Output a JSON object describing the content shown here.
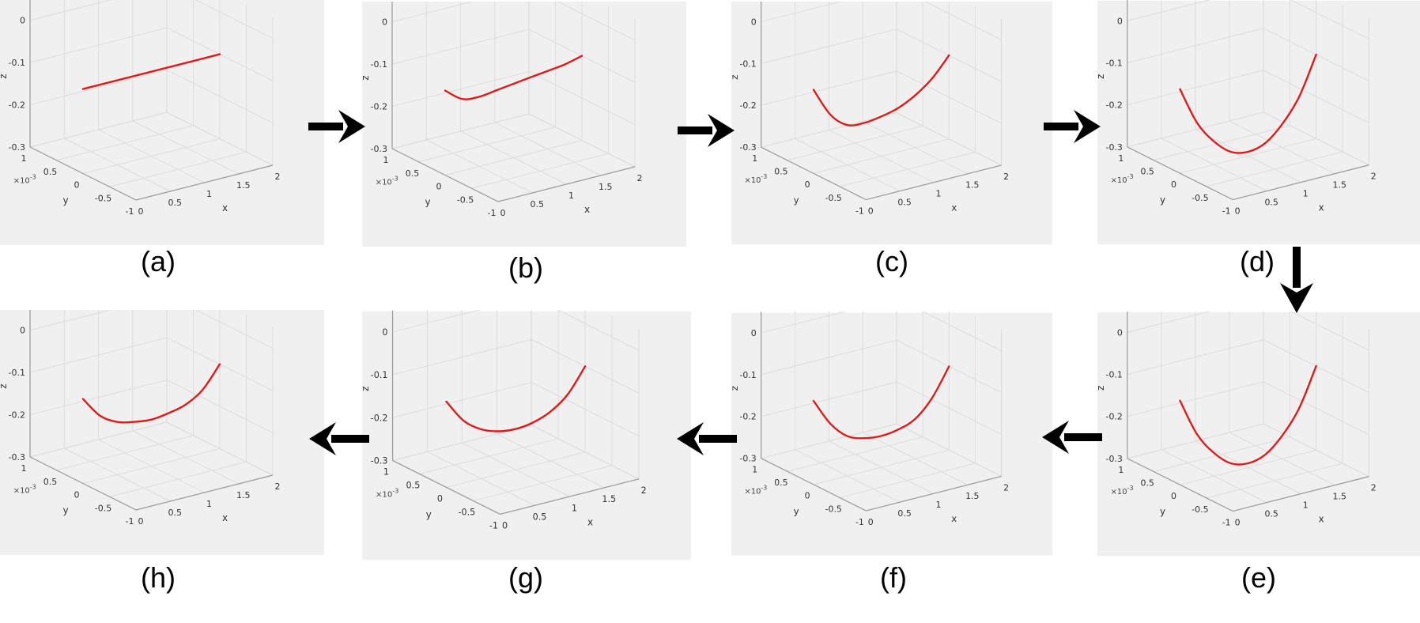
{
  "figure": {
    "flow": [
      "a",
      "b",
      "c",
      "d",
      "e",
      "f",
      "g",
      "h"
    ],
    "colors": {
      "curve": "#dd1c1a",
      "panel_bg": "#f0f0f0",
      "grid": "#dcdcdc",
      "axis": "#9a9a9a",
      "arrow": "#000000"
    }
  },
  "chart_data": [
    {
      "id": "a",
      "type": "line",
      "caption": "(a)",
      "xlabel": "x",
      "ylabel": "y",
      "zlabel": "z",
      "x_ticks": [
        "0",
        "0.5",
        "1",
        "1.5",
        "2"
      ],
      "y_ticks": [
        "1",
        "0.5",
        "0",
        "-0.5",
        "-1"
      ],
      "y_exponent": "×10-3",
      "z_ticks": [
        "0",
        "-0.1",
        "-0.2",
        "-0.3"
      ],
      "xlim": [
        0,
        2
      ],
      "ylim": [
        -0.001,
        0.001
      ],
      "zlim": [
        -0.3,
        0.05
      ],
      "grid": true,
      "series": [
        {
          "x": [
            0,
            2
          ],
          "y": [
            0,
            0
          ],
          "z": [
            -0.1,
            -0.1
          ]
        }
      ]
    },
    {
      "id": "b",
      "type": "line",
      "caption": "(b)",
      "xlabel": "x",
      "ylabel": "y",
      "zlabel": "z",
      "x_ticks": [
        "0",
        "0.5",
        "1",
        "1.5",
        "2"
      ],
      "y_ticks": [
        "1",
        "0.5",
        "0",
        "-0.5",
        "-1"
      ],
      "y_exponent": "×10-3",
      "z_ticks": [
        "0",
        "-0.1",
        "-0.2",
        "-0.3"
      ],
      "xlim": [
        0,
        2
      ],
      "ylim": [
        -0.001,
        0.001
      ],
      "zlim": [
        -0.3,
        0.05
      ],
      "grid": true,
      "series": [
        {
          "x": [
            0,
            0.25,
            0.5,
            0.75,
            1,
            1.25,
            1.5,
            1.75,
            2
          ],
          "y": [
            0,
            0,
            0,
            0,
            0,
            0,
            0,
            0,
            0
          ],
          "z": [
            -0.1,
            -0.13,
            -0.135,
            -0.13,
            -0.125,
            -0.12,
            -0.115,
            -0.11,
            -0.1
          ]
        }
      ]
    },
    {
      "id": "c",
      "type": "line",
      "caption": "(c)",
      "xlabel": "x",
      "ylabel": "y",
      "zlabel": "z",
      "x_ticks": [
        "0",
        "0.5",
        "1",
        "1.5",
        "2"
      ],
      "y_ticks": [
        "1",
        "0.5",
        "0",
        "-0.5",
        "-1"
      ],
      "y_exponent": "×10-3",
      "z_ticks": [
        "0",
        "-0.1",
        "-0.2",
        "-0.3"
      ],
      "xlim": [
        0,
        2
      ],
      "ylim": [
        -0.001,
        0.001
      ],
      "zlim": [
        -0.3,
        0.05
      ],
      "grid": true,
      "series": [
        {
          "x": [
            0,
            0.25,
            0.5,
            0.75,
            1,
            1.25,
            1.5,
            1.75,
            2
          ],
          "y": [
            0,
            0,
            0,
            0,
            0,
            0,
            0,
            0,
            0
          ],
          "z": [
            -0.1,
            -0.17,
            -0.205,
            -0.21,
            -0.205,
            -0.195,
            -0.175,
            -0.145,
            -0.1
          ]
        }
      ]
    },
    {
      "id": "d",
      "type": "line",
      "caption": "(d)",
      "xlabel": "x",
      "ylabel": "y",
      "zlabel": "z",
      "x_ticks": [
        "0",
        "0.5",
        "1",
        "1.5",
        "2"
      ],
      "y_ticks": [
        "1",
        "0.5",
        "0",
        "-0.5",
        "-1"
      ],
      "y_exponent": "×10-3",
      "z_ticks": [
        "0",
        "-0.1",
        "-0.2",
        "-0.3"
      ],
      "xlim": [
        0,
        2
      ],
      "ylim": [
        -0.001,
        0.001
      ],
      "zlim": [
        -0.3,
        0.05
      ],
      "grid": true,
      "series": [
        {
          "x": [
            0,
            0.25,
            0.5,
            0.75,
            1,
            1.25,
            1.5,
            1.75,
            2
          ],
          "y": [
            0,
            0,
            0,
            0,
            0,
            0,
            0,
            0,
            0
          ],
          "z": [
            -0.1,
            -0.19,
            -0.245,
            -0.28,
            -0.29,
            -0.28,
            -0.245,
            -0.19,
            -0.1
          ]
        }
      ]
    },
    {
      "id": "e",
      "type": "line",
      "caption": "(e)",
      "xlabel": "x",
      "ylabel": "y",
      "zlabel": "z",
      "x_ticks": [
        "0",
        "0.5",
        "1",
        "1.5",
        "2"
      ],
      "y_ticks": [
        "1",
        "0.5",
        "0",
        "-0.5",
        "-1"
      ],
      "y_exponent": "×10-3",
      "z_ticks": [
        "0",
        "-0.1",
        "-0.2",
        "-0.3"
      ],
      "xlim": [
        0,
        2
      ],
      "ylim": [
        -0.001,
        0.001
      ],
      "zlim": [
        -0.3,
        0.05
      ],
      "grid": true,
      "series": [
        {
          "x": [
            0,
            0.25,
            0.5,
            0.75,
            1,
            1.25,
            1.5,
            1.75,
            2
          ],
          "y": [
            0,
            0,
            0,
            0,
            0,
            0,
            0,
            0,
            0
          ],
          "z": [
            -0.1,
            -0.19,
            -0.245,
            -0.28,
            -0.29,
            -0.28,
            -0.245,
            -0.19,
            -0.1
          ]
        }
      ]
    },
    {
      "id": "f",
      "type": "line",
      "caption": "(f)",
      "xlabel": "x",
      "ylabel": "y",
      "zlabel": "z",
      "x_ticks": [
        "0",
        "0.5",
        "1",
        "1.5",
        "2"
      ],
      "y_ticks": [
        "1",
        "0.5",
        "0",
        "-0.5",
        "-1"
      ],
      "y_exponent": "×10-3",
      "z_ticks": [
        "0",
        "-0.1",
        "-0.2",
        "-0.3"
      ],
      "xlim": [
        0,
        2
      ],
      "ylim": [
        -0.001,
        0.001
      ],
      "zlim": [
        -0.3,
        0.05
      ],
      "grid": true,
      "series": [
        {
          "x": [
            0,
            0.25,
            0.5,
            0.75,
            1,
            1.25,
            1.5,
            1.75,
            2
          ],
          "y": [
            0,
            0,
            0,
            0,
            0,
            0,
            0,
            0,
            0
          ],
          "z": [
            -0.1,
            -0.165,
            -0.205,
            -0.22,
            -0.225,
            -0.22,
            -0.205,
            -0.165,
            -0.1
          ]
        }
      ]
    },
    {
      "id": "g",
      "type": "line",
      "caption": "(g)",
      "xlabel": "x",
      "ylabel": "y",
      "zlabel": "z",
      "x_ticks": [
        "0",
        "0.5",
        "1",
        "1.5",
        "2"
      ],
      "y_ticks": [
        "1",
        "0.5",
        "0",
        "-0.5",
        "-1"
      ],
      "y_exponent": "×10-3",
      "z_ticks": [
        "0",
        "-0.1",
        "-0.2",
        "-0.3"
      ],
      "xlim": [
        0,
        2
      ],
      "ylim": [
        -0.001,
        0.001
      ],
      "zlim": [
        -0.3,
        0.05
      ],
      "grid": true,
      "series": [
        {
          "x": [
            0,
            0.25,
            0.5,
            0.75,
            1,
            1.25,
            1.5,
            1.75,
            2
          ],
          "y": [
            0,
            0,
            0,
            0,
            0,
            0,
            0,
            0,
            0
          ],
          "z": [
            -0.1,
            -0.155,
            -0.185,
            -0.2,
            -0.205,
            -0.2,
            -0.185,
            -0.155,
            -0.1
          ]
        }
      ]
    },
    {
      "id": "h",
      "type": "line",
      "caption": "(h)",
      "xlabel": "x",
      "ylabel": "y",
      "zlabel": "z",
      "x_ticks": [
        "0",
        "0.5",
        "1",
        "1.5",
        "2"
      ],
      "y_ticks": [
        "1",
        "0.5",
        "0",
        "-0.5",
        "-1"
      ],
      "y_exponent": "×10-3",
      "z_ticks": [
        "0",
        "-0.1",
        "-0.2",
        "-0.3"
      ],
      "xlim": [
        0,
        2
      ],
      "ylim": [
        -0.001,
        0.001
      ],
      "zlim": [
        -0.3,
        0.05
      ],
      "grid": true,
      "series": [
        {
          "x": [
            0,
            0.25,
            0.5,
            0.75,
            1,
            1.25,
            1.5,
            1.75,
            2
          ],
          "y": [
            0,
            0,
            0,
            0,
            0,
            0,
            0,
            0,
            0
          ],
          "z": [
            -0.1,
            -0.15,
            -0.175,
            -0.185,
            -0.19,
            -0.185,
            -0.175,
            -0.15,
            -0.1
          ]
        }
      ]
    }
  ]
}
